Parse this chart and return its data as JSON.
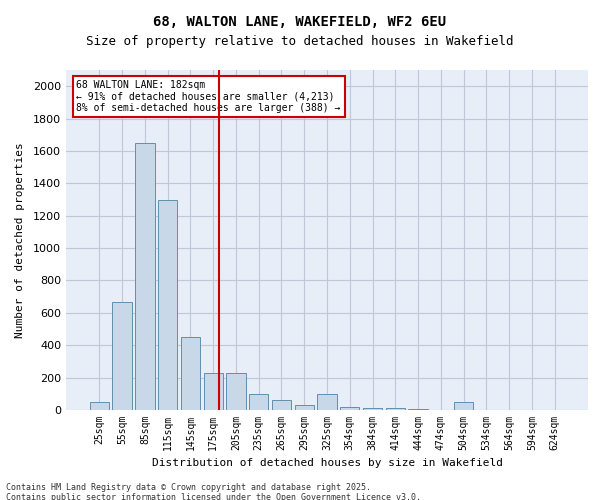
{
  "title_line1": "68, WALTON LANE, WAKEFIELD, WF2 6EU",
  "title_line2": "Size of property relative to detached houses in Wakefield",
  "xlabel": "Distribution of detached houses by size in Wakefield",
  "ylabel": "Number of detached properties",
  "categories": [
    "25sqm",
    "55sqm",
    "85sqm",
    "115sqm",
    "145sqm",
    "175sqm",
    "205sqm",
    "235sqm",
    "265sqm",
    "295sqm",
    "325sqm",
    "354sqm",
    "384sqm",
    "414sqm",
    "444sqm",
    "474sqm",
    "504sqm",
    "534sqm",
    "564sqm",
    "594sqm",
    "624sqm"
  ],
  "values": [
    50,
    670,
    1650,
    1300,
    450,
    230,
    230,
    100,
    60,
    30,
    100,
    20,
    15,
    10,
    5,
    0,
    50,
    0,
    0,
    0,
    0
  ],
  "bar_color": "#c8d8e8",
  "bar_edge_color": "#6090b0",
  "redline_x": 7,
  "annotation_text": "68 WALTON LANE: 182sqm\n← 91% of detached houses are smaller (4,213)\n8% of semi-detached houses are larger (388) →",
  "annotation_box_color": "#ffffff",
  "annotation_box_edge": "#cc0000",
  "redline_color": "#cc0000",
  "ylim": [
    0,
    2100
  ],
  "yticks": [
    0,
    200,
    400,
    600,
    800,
    1000,
    1200,
    1400,
    1600,
    1800,
    2000
  ],
  "grid_color": "#c0c8d8",
  "bg_color": "#e8eef8",
  "footer_line1": "Contains HM Land Registry data © Crown copyright and database right 2025.",
  "footer_line2": "Contains public sector information licensed under the Open Government Licence v3.0."
}
